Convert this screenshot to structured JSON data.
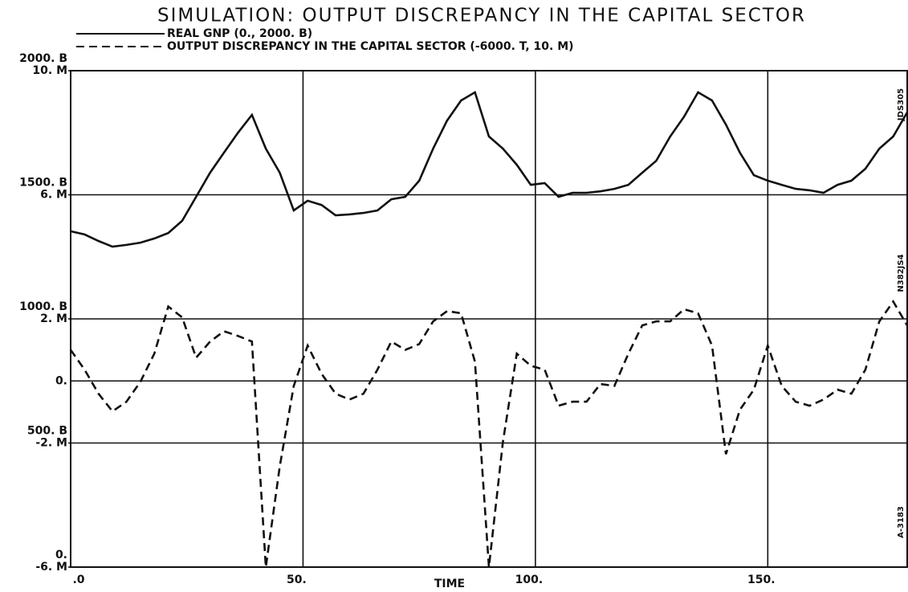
{
  "chart_data": {
    "type": "line",
    "title": "SIMULATION: OUTPUT DISCREPANCY IN THE CAPITAL SECTOR",
    "xlabel": "TIME",
    "annotations": [
      "JDS305",
      "N382JS4",
      "A-3183"
    ],
    "x": [
      0,
      3,
      6,
      9,
      12,
      15,
      18,
      21,
      24,
      27,
      30,
      33,
      36,
      39,
      42,
      45,
      48,
      51,
      54,
      57,
      60,
      63,
      66,
      69,
      72,
      75,
      78,
      81,
      84,
      87,
      90,
      93,
      96,
      99,
      102,
      105,
      108,
      111,
      114,
      117,
      120,
      123,
      126,
      129,
      132,
      135,
      138,
      141,
      144,
      147,
      150,
      153,
      156,
      159,
      162,
      165,
      168,
      171,
      174,
      177,
      180
    ],
    "xlim": [
      0,
      180
    ],
    "xticks": [
      {
        "value": 0,
        "label": ".0"
      },
      {
        "value": 50,
        "label": "50."
      },
      {
        "value": 100,
        "label": "100."
      },
      {
        "value": 150,
        "label": "150."
      }
    ],
    "ylim": [
      0,
      2000
    ],
    "yticks": [
      {
        "value": 2000,
        "label": "2000. B"
      },
      {
        "value": 1500,
        "label": "1500. B"
      },
      {
        "value": 1000,
        "label": "1000. B"
      },
      {
        "value": 500,
        "label": "500. B"
      },
      {
        "value": 0,
        "label": "0."
      }
    ],
    "y2lim": [
      -6,
      10
    ],
    "y2ticks": [
      {
        "value": 10,
        "label": "10. M"
      },
      {
        "value": 6,
        "label": "6. M"
      },
      {
        "value": 2,
        "label": "2. M"
      },
      {
        "value": 0,
        "label": "0."
      },
      {
        "value": -2,
        "label": "-2. M"
      },
      {
        "value": -6,
        "label": "-6. M"
      }
    ],
    "grid": true,
    "series": [
      {
        "name": "REAL GNP (0., 2000. B)",
        "color": "#111111",
        "dash": false,
        "values": [
          1353,
          1340,
          1314,
          1291,
          1298,
          1307,
          1324,
          1346,
          1395,
          1492,
          1589,
          1670,
          1750,
          1822,
          1686,
          1589,
          1437,
          1476,
          1459,
          1417,
          1421,
          1427,
          1437,
          1482,
          1492,
          1557,
          1686,
          1799,
          1880,
          1913,
          1735,
          1686,
          1621,
          1540,
          1547,
          1492,
          1508,
          1508,
          1514,
          1524,
          1540,
          1589,
          1637,
          1735,
          1815,
          1913,
          1880,
          1783,
          1670,
          1579,
          1557,
          1540,
          1524,
          1518,
          1508,
          1540,
          1557,
          1605,
          1686,
          1735,
          1832
        ]
      },
      {
        "name": "OUTPUT DISCREPANCY IN THE CAPITAL SECTOR (-6000. T, 10. M)",
        "color": "#111111",
        "dash": true,
        "axis": "y2",
        "values": [
          1.0,
          0.36,
          -0.41,
          -0.98,
          -0.67,
          -0.03,
          0.88,
          2.4,
          2.05,
          0.75,
          1.27,
          1.6,
          1.45,
          1.27,
          -6,
          -2.75,
          -0.16,
          1.14,
          0.23,
          -0.41,
          -0.6,
          -0.41,
          0.36,
          1.27,
          1.0,
          1.19,
          1.92,
          2.25,
          2.18,
          0.62,
          -6,
          -1.97,
          0.88,
          0.49,
          0.36,
          -0.8,
          -0.67,
          -0.67,
          -0.1,
          -0.16,
          0.88,
          1.79,
          1.92,
          1.92,
          2.31,
          2.18,
          1.14,
          -2.36,
          -0.93,
          -0.28,
          1.14,
          -0.16,
          -0.67,
          -0.8,
          -0.6,
          -0.28,
          -0.41,
          0.36,
          1.92,
          2.56,
          1.79
        ]
      }
    ]
  }
}
